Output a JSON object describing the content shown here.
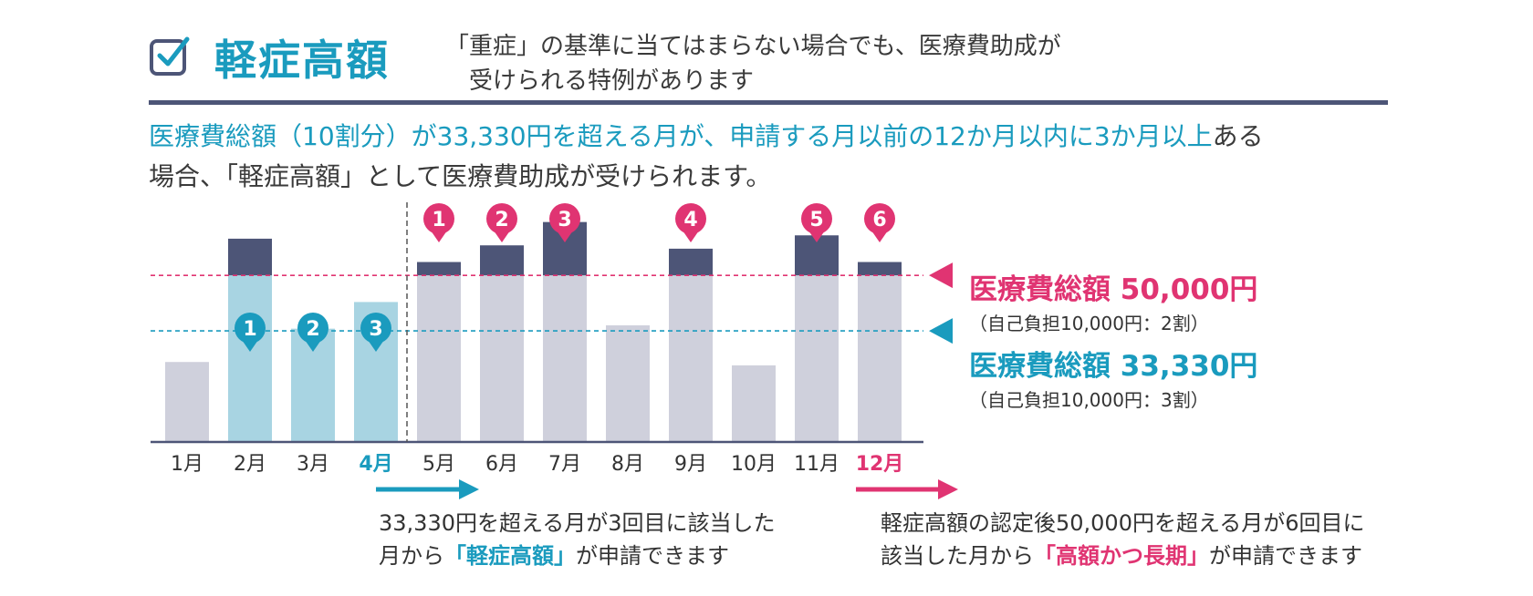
{
  "header": {
    "title": "軽症高額",
    "subtitle_line1": "「重症」の基準に当てはまらない場合でも、医療費助成が",
    "subtitle_line2": "　受けられる特例があります"
  },
  "description": {
    "part1": "医療費総額（10割分）が33,330円を超える月が、申請する月以前の12か月以内に3か月以上",
    "part2": "ある",
    "line2": "場合、「軽症高額」として医療費助成が受けられます。"
  },
  "colors": {
    "teal": "#1a9bbe",
    "pink": "#e03472",
    "navy": "#4d5577",
    "gray_bar": "#cfd0dc",
    "light_blue_bar": "#a8d4e2"
  },
  "chart_data": {
    "type": "bar",
    "categories": [
      "1月",
      "2月",
      "3月",
      "4月",
      "5月",
      "6月",
      "7月",
      "8月",
      "9月",
      "10月",
      "11月",
      "12月"
    ],
    "values": [
      24000,
      61000,
      34000,
      42000,
      54000,
      59000,
      66000,
      35000,
      58000,
      23000,
      62000,
      54000
    ],
    "thresholds": [
      {
        "value": 50000,
        "label": "医療費総額 50,000円",
        "sublabel": "（自己負担10,000円：2割）",
        "color": "#e03472"
      },
      {
        "value": 33330,
        "label": "医療費総額 33,330円",
        "sublabel": "（自己負担10,000円：3割）",
        "color": "#1a9bbe"
      }
    ],
    "highlight_categories": {
      "4月": "#1a9bbe",
      "12月": "#e03472"
    },
    "teal_markers": [
      {
        "category": "2月",
        "number": "1"
      },
      {
        "category": "3月",
        "number": "2"
      },
      {
        "category": "4月",
        "number": "3"
      }
    ],
    "pink_markers": [
      {
        "category": "5月",
        "number": "1"
      },
      {
        "category": "6月",
        "number": "2"
      },
      {
        "category": "7月",
        "number": "3"
      },
      {
        "category": "9月",
        "number": "4"
      },
      {
        "category": "11月",
        "number": "5"
      },
      {
        "category": "12月",
        "number": "6"
      }
    ],
    "ylim": [
      0,
      70000
    ]
  },
  "notes": {
    "left_line1": "33,330円を超える月が3回目に該当した",
    "left_line2_pre": "月から",
    "left_line2_bold": "「軽症高額」",
    "left_line2_post": "が申請できます",
    "right_line1": "軽症高額の認定後50,000円を超える月が6回目に",
    "right_line2_pre": "該当した月から",
    "right_line2_bold": "「高額かつ長期」",
    "right_line2_post": "が申請できます"
  }
}
